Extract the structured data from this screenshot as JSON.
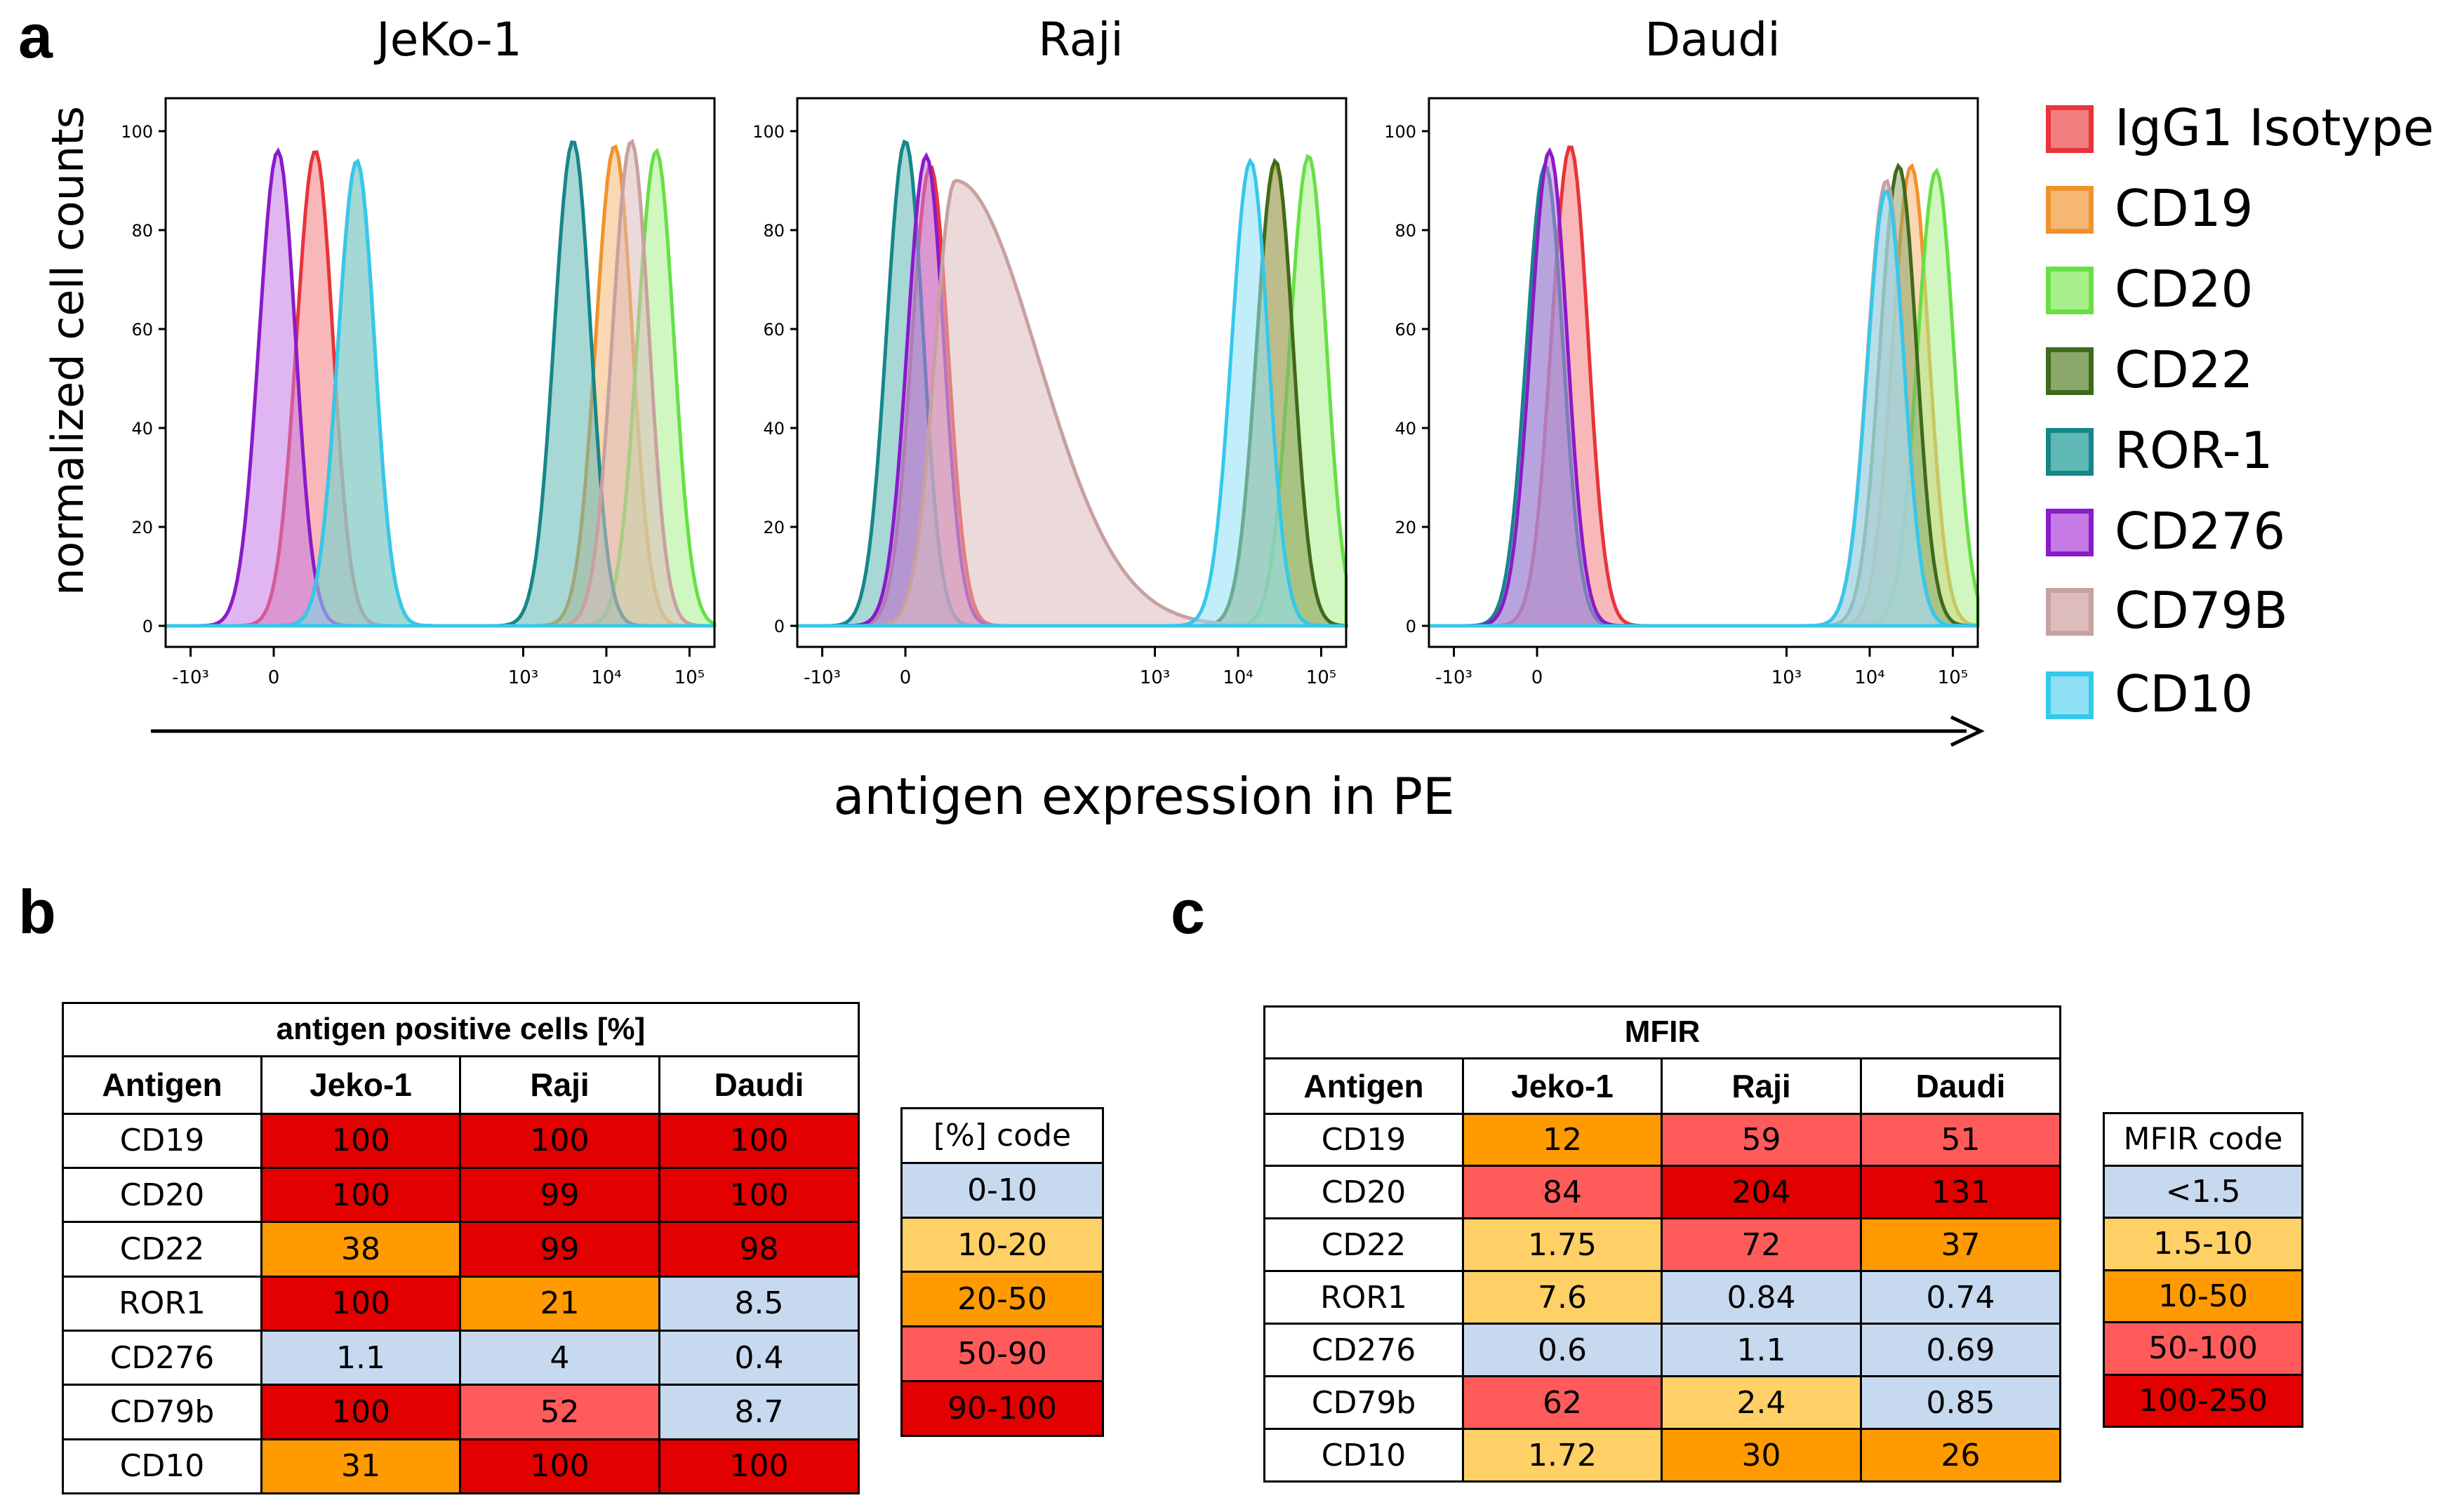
{
  "panels": {
    "a": "a",
    "b": "b",
    "c": "c"
  },
  "chart_data": {
    "type": "histogram",
    "ylabel": "normalized cell counts",
    "xlabel": "antigen expression in PE",
    "plots": [
      {
        "title": "JeKo-1",
        "x_ticks": [
          "-10³",
          "0",
          "10³",
          "10⁴",
          "10⁵"
        ],
        "y_ticks": [
          "100",
          "80",
          "60",
          "40",
          "20",
          "0"
        ]
      },
      {
        "title": "Raji",
        "x_ticks": [
          "-10³",
          "0",
          "10³",
          "10⁴",
          "10⁵"
        ],
        "y_ticks": [
          "100",
          "80",
          "60",
          "40",
          "20",
          "0"
        ]
      },
      {
        "title": "Daudi",
        "x_ticks": [
          "-10³",
          "0",
          "10³",
          "10⁴",
          "10⁵"
        ],
        "y_ticks": [
          "100",
          "80",
          "60",
          "40",
          "20",
          "0"
        ]
      }
    ],
    "ylim": [
      0,
      100
    ],
    "xlim": [
      -1.3,
      5.3
    ],
    "series": [
      {
        "name": "IgG1 Isotype",
        "stroke": "#e8343a",
        "fill": "#f27d7f",
        "peaks": {
          "JeKo-1": {
            "x": 0.5,
            "y": 96
          },
          "Raji": {
            "x": 0.3,
            "y": 93
          },
          "Daudi": {
            "x": 0.4,
            "y": 97
          }
        }
      },
      {
        "name": "CD19",
        "stroke": "#f0922c",
        "fill": "#f7b774",
        "peaks": {
          "JeKo-1": {
            "x": 4.1,
            "y": 97
          },
          "Raji": {
            "x": 4.45,
            "y": 93
          },
          "Daudi": {
            "x": 4.5,
            "y": 93
          }
        }
      },
      {
        "name": "CD20",
        "stroke": "#66e046",
        "fill": "#a9f08c",
        "peaks": {
          "JeKo-1": {
            "x": 4.6,
            "y": 96
          },
          "Raji": {
            "x": 4.85,
            "y": 95
          },
          "Daudi": {
            "x": 4.8,
            "y": 92
          }
        }
      },
      {
        "name": "CD22",
        "stroke": "#3f6a1b",
        "fill": "#8aa86b",
        "peaks": {
          "JeKo-1": {
            "x": 1.0,
            "y": 94
          },
          "Raji": {
            "x": 4.45,
            "y": 94
          },
          "Daudi": {
            "x": 4.35,
            "y": 93
          }
        }
      },
      {
        "name": "ROR-1",
        "stroke": "#17868a",
        "fill": "#5fb8b4",
        "peaks": {
          "JeKo-1": {
            "x": 3.6,
            "y": 98
          },
          "Raji": {
            "x": 0.0,
            "y": 98
          },
          "Daudi": {
            "x": 0.1,
            "y": 93
          }
        }
      },
      {
        "name": "CD276",
        "stroke": "#8a1bc8",
        "fill": "#c57ae6",
        "peaks": {
          "JeKo-1": {
            "x": 0.05,
            "y": 96
          },
          "Raji": {
            "x": 0.25,
            "y": 95
          },
          "Daudi": {
            "x": 0.15,
            "y": 96
          }
        }
      },
      {
        "name": "CD79B",
        "stroke": "#c9a0a0",
        "fill": "#dcbcbc",
        "peaks": {
          "JeKo-1": {
            "x": 4.3,
            "y": 98
          },
          "Raji": {
            "x": 0.6,
            "y": 90
          },
          "Daudi": {
            "x": 4.2,
            "y": 90
          }
        }
      },
      {
        "name": "CD10",
        "stroke": "#35c8ea",
        "fill": "#8ee0f5",
        "peaks": {
          "JeKo-1": {
            "x": 1.0,
            "y": 94
          },
          "Raji": {
            "x": 4.15,
            "y": 94
          },
          "Daudi": {
            "x": 4.2,
            "y": 88
          }
        }
      }
    ]
  },
  "table_b": {
    "caption": "antigen positive cells [%]",
    "headers": [
      "Antigen",
      "Jeko-1",
      "Raji",
      "Daudi"
    ],
    "rows": [
      {
        "antigen": "CD19",
        "values": [
          "100",
          "100",
          "100"
        ],
        "colors": [
          "#e30000",
          "#e30000",
          "#e30000"
        ]
      },
      {
        "antigen": "CD20",
        "values": [
          "100",
          "99",
          "100"
        ],
        "colors": [
          "#e30000",
          "#e30000",
          "#e30000"
        ]
      },
      {
        "antigen": "CD22",
        "values": [
          "38",
          "99",
          "98"
        ],
        "colors": [
          "#ff9a00",
          "#e30000",
          "#e30000"
        ]
      },
      {
        "antigen": "ROR1",
        "values": [
          "100",
          "21",
          "8.5"
        ],
        "colors": [
          "#e30000",
          "#ff9a00",
          "#c7d9ef"
        ]
      },
      {
        "antigen": "CD276",
        "values": [
          "1.1",
          "4",
          "0.4"
        ],
        "colors": [
          "#c7d9ef",
          "#c7d9ef",
          "#c7d9ef"
        ]
      },
      {
        "antigen": "CD79b",
        "values": [
          "100",
          "52",
          "8.7"
        ],
        "colors": [
          "#e30000",
          "#ff5b5b",
          "#c7d9ef"
        ]
      },
      {
        "antigen": "CD10",
        "values": [
          "31",
          "100",
          "100"
        ],
        "colors": [
          "#ff9a00",
          "#e30000",
          "#e30000"
        ]
      }
    ]
  },
  "code_b": {
    "title": "[%] code",
    "items": [
      {
        "label": "0-10",
        "color": "#c7d9ef"
      },
      {
        "label": "10-20",
        "color": "#ffd066"
      },
      {
        "label": "20-50",
        "color": "#ff9a00"
      },
      {
        "label": "50-90",
        "color": "#ff5b5b"
      },
      {
        "label": "90-100",
        "color": "#e30000"
      }
    ]
  },
  "table_c": {
    "caption": "MFIR",
    "headers": [
      "Antigen",
      "Jeko-1",
      "Raji",
      "Daudi"
    ],
    "rows": [
      {
        "antigen": "CD19",
        "values": [
          "12",
          "59",
          "51"
        ],
        "colors": [
          "#ff9a00",
          "#ff5b5b",
          "#ff5b5b"
        ]
      },
      {
        "antigen": "CD20",
        "values": [
          "84",
          "204",
          "131"
        ],
        "colors": [
          "#ff5b5b",
          "#e30000",
          "#e30000"
        ]
      },
      {
        "antigen": "CD22",
        "values": [
          "1.75",
          "72",
          "37"
        ],
        "colors": [
          "#ffd066",
          "#ff5b5b",
          "#ff9a00"
        ]
      },
      {
        "antigen": "ROR1",
        "values": [
          "7.6",
          "0.84",
          "0.74"
        ],
        "colors": [
          "#ffd066",
          "#c7d9ef",
          "#c7d9ef"
        ]
      },
      {
        "antigen": "CD276",
        "values": [
          "0.6",
          "1.1",
          "0.69"
        ],
        "colors": [
          "#c7d9ef",
          "#c7d9ef",
          "#c7d9ef"
        ]
      },
      {
        "antigen": "CD79b",
        "values": [
          "62",
          "2.4",
          "0.85"
        ],
        "colors": [
          "#ff5b5b",
          "#ffd066",
          "#c7d9ef"
        ]
      },
      {
        "antigen": "CD10",
        "values": [
          "1.72",
          "30",
          "26"
        ],
        "colors": [
          "#ffd066",
          "#ff9a00",
          "#ff9a00"
        ]
      }
    ]
  },
  "code_c": {
    "title": "MFIR code",
    "items": [
      {
        "label": "<1.5",
        "color": "#c7d9ef"
      },
      {
        "label": "1.5-10",
        "color": "#ffd066"
      },
      {
        "label": "10-50",
        "color": "#ff9a00"
      },
      {
        "label": "50-100",
        "color": "#ff5b5b"
      },
      {
        "label": "100-250",
        "color": "#e30000"
      }
    ]
  }
}
